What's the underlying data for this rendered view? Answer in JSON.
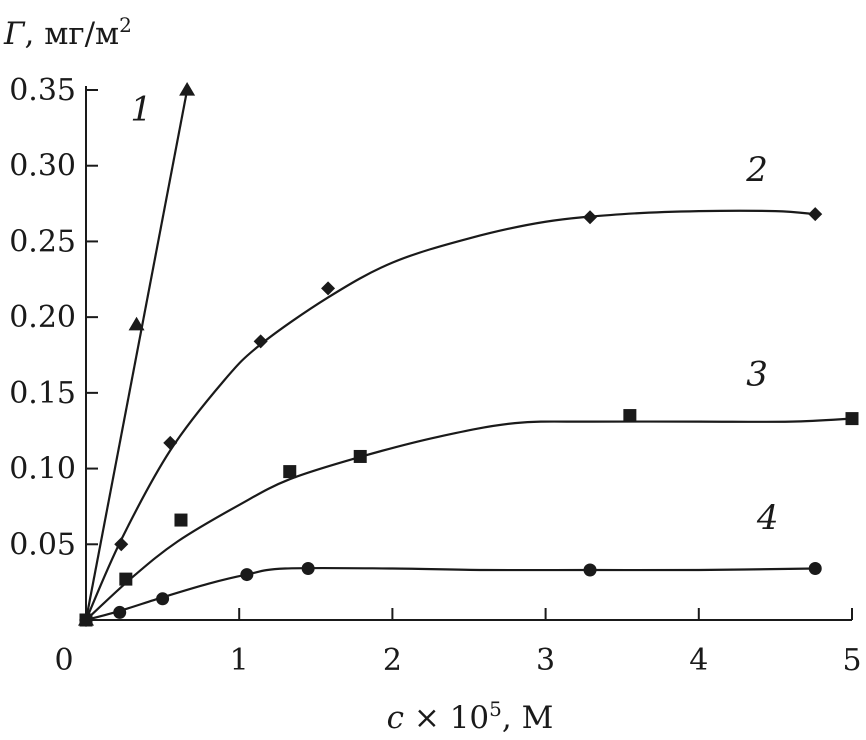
{
  "chart_data": {
    "type": "scatter",
    "title": "",
    "xlabel": {
      "var": "c",
      "rest": " × 10",
      "sup": "5",
      "tail": ", М"
    },
    "ylabel": {
      "var": "Г",
      "rest": ", мг/м",
      "sup": "2"
    },
    "xlim": [
      0,
      5
    ],
    "ylim": [
      0,
      0.35
    ],
    "xticks": [
      0,
      1,
      2,
      3,
      4,
      5
    ],
    "xtick_labels": [
      "0",
      "1",
      "2",
      "3",
      "4",
      "5"
    ],
    "yticks": [
      0.05,
      0.1,
      0.15,
      0.2,
      0.25,
      0.3,
      0.35
    ],
    "ytick_labels": [
      "0.05",
      "0.10",
      "0.15",
      "0.20",
      "0.25",
      "0.30",
      "0.35"
    ],
    "grid": false,
    "series": [
      {
        "name": "1",
        "marker": "triangle",
        "points": [
          [
            0,
            0
          ],
          [
            0.33,
            0.195
          ],
          [
            0.66,
            0.35
          ]
        ],
        "curve": [
          [
            0,
            0
          ],
          [
            0.66,
            0.35
          ]
        ],
        "label_at": [
          0.36,
          0.33
        ]
      },
      {
        "name": "2",
        "marker": "diamond",
        "points": [
          [
            0,
            0
          ],
          [
            0.23,
            0.05
          ],
          [
            0.55,
            0.117
          ],
          [
            1.14,
            0.184
          ],
          [
            1.58,
            0.219
          ],
          [
            3.29,
            0.266
          ],
          [
            4.76,
            0.268
          ]
        ],
        "curve": [
          [
            0,
            0
          ],
          [
            0.23,
            0.053
          ],
          [
            0.55,
            0.112
          ],
          [
            0.9,
            0.158
          ],
          [
            1.14,
            0.182
          ],
          [
            1.58,
            0.213
          ],
          [
            2.0,
            0.236
          ],
          [
            2.5,
            0.252
          ],
          [
            3.0,
            0.263
          ],
          [
            3.5,
            0.268
          ],
          [
            4.0,
            0.27
          ],
          [
            4.5,
            0.27
          ],
          [
            4.76,
            0.268
          ]
        ],
        "label_at": [
          4.38,
          0.29
        ]
      },
      {
        "name": "3",
        "marker": "square",
        "points": [
          [
            0,
            0
          ],
          [
            0.26,
            0.027
          ],
          [
            0.62,
            0.066
          ],
          [
            1.33,
            0.098
          ],
          [
            1.79,
            0.108
          ],
          [
            3.55,
            0.135
          ],
          [
            5.0,
            0.133
          ]
        ],
        "curve": [
          [
            0,
            0
          ],
          [
            0.3,
            0.028
          ],
          [
            0.6,
            0.052
          ],
          [
            1.0,
            0.076
          ],
          [
            1.33,
            0.093
          ],
          [
            1.8,
            0.108
          ],
          [
            2.3,
            0.121
          ],
          [
            2.8,
            0.13
          ],
          [
            3.3,
            0.131
          ],
          [
            4.0,
            0.131
          ],
          [
            4.6,
            0.131
          ],
          [
            5.0,
            0.133
          ]
        ],
        "label_at": [
          4.38,
          0.155
        ]
      },
      {
        "name": "4",
        "marker": "circle",
        "points": [
          [
            0,
            0
          ],
          [
            0.22,
            0.005
          ],
          [
            0.5,
            0.014
          ],
          [
            1.05,
            0.03
          ],
          [
            1.45,
            0.034
          ],
          [
            3.29,
            0.033
          ],
          [
            4.76,
            0.034
          ]
        ],
        "curve": [
          [
            0,
            0
          ],
          [
            0.22,
            0.006
          ],
          [
            0.5,
            0.015
          ],
          [
            0.8,
            0.024
          ],
          [
            1.05,
            0.03
          ],
          [
            1.3,
            0.034
          ],
          [
            2.0,
            0.034
          ],
          [
            2.6,
            0.033
          ],
          [
            3.3,
            0.033
          ],
          [
            4.0,
            0.033
          ],
          [
            4.76,
            0.034
          ]
        ],
        "label_at": [
          4.45,
          0.06
        ]
      }
    ]
  }
}
